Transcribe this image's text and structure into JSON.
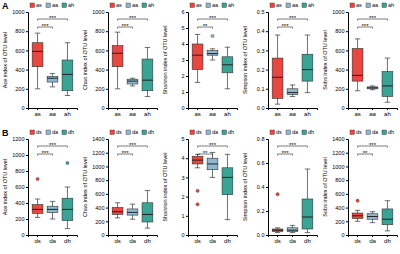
{
  "chart_data": [
    {
      "type": "box",
      "panel": "A",
      "y_label": "Ace index of OTU level",
      "categories": [
        "as",
        "aa",
        "ah"
      ],
      "colors": [
        "#e8473f",
        "#8fb8d0",
        "#3aa394"
      ],
      "legend": "top",
      "ylim": [
        0,
        1000
      ],
      "yticks": [
        0,
        200,
        400,
        600,
        800,
        1000
      ],
      "boxes": [
        {
          "min": 200,
          "q1": 430,
          "median": 590,
          "q3": 680,
          "max": 780,
          "outliers": []
        },
        {
          "min": 220,
          "q1": 270,
          "median": 310,
          "q3": 330,
          "max": 360,
          "outliers": []
        },
        {
          "min": 130,
          "q1": 180,
          "median": 350,
          "q3": 500,
          "max": 680,
          "outliers": []
        }
      ],
      "significance": [
        {
          "pair": [
            "as",
            "aa"
          ],
          "label": "***"
        },
        {
          "pair": [
            "as",
            "ah"
          ],
          "label": "***"
        }
      ]
    },
    {
      "type": "box",
      "y_label": "Chao index of OTU level",
      "categories": [
        "as",
        "aa",
        "ah"
      ],
      "colors": [
        "#e8473f",
        "#8fb8d0",
        "#3aa394"
      ],
      "legend": "top",
      "ylim": [
        0,
        1000
      ],
      "yticks": [
        0,
        200,
        400,
        600,
        800,
        1000
      ],
      "boxes": [
        {
          "min": 200,
          "q1": 430,
          "median": 570,
          "q3": 650,
          "max": 790,
          "outliers": []
        },
        {
          "min": 230,
          "q1": 250,
          "median": 280,
          "q3": 300,
          "max": 310,
          "outliers": []
        },
        {
          "min": 120,
          "q1": 180,
          "median": 290,
          "q3": 510,
          "max": 630,
          "outliers": []
        }
      ],
      "significance": [
        {
          "pair": [
            "as",
            "aa"
          ],
          "label": "***"
        },
        {
          "pair": [
            "as",
            "ah"
          ],
          "label": "***"
        }
      ]
    },
    {
      "type": "box",
      "y_label": "Shannon index of OTU level",
      "categories": [
        "as",
        "aa",
        "ah"
      ],
      "colors": [
        "#e8473f",
        "#8fb8d0",
        "#3aa394"
      ],
      "legend": "top",
      "ylim": [
        0,
        6
      ],
      "yticks": [
        0,
        1,
        2,
        3,
        4,
        5,
        6
      ],
      "boxes": [
        {
          "min": 1.6,
          "q1": 2.4,
          "median": 3.3,
          "q3": 4.0,
          "max": 4.6,
          "outliers": []
        },
        {
          "min": 3.0,
          "q1": 3.3,
          "median": 3.4,
          "q3": 3.6,
          "max": 3.7,
          "outliers": [
            4.5
          ]
        },
        {
          "min": 1.2,
          "q1": 2.2,
          "median": 2.7,
          "q3": 3.2,
          "max": 3.8,
          "outliers": []
        }
      ],
      "significance": [
        {
          "pair": [
            "as",
            "aa"
          ],
          "label": "**"
        },
        {
          "pair": [
            "as",
            "ah"
          ],
          "label": "***"
        }
      ]
    },
    {
      "type": "box",
      "y_label": "Simpson index of OTU level",
      "categories": [
        "as",
        "aa",
        "ah"
      ],
      "colors": [
        "#e8473f",
        "#8fb8d0",
        "#3aa394"
      ],
      "legend": "top",
      "ylim": [
        0,
        0.5
      ],
      "yticks": [
        {
          "value": 0,
          "label": "0.0"
        },
        {
          "value": 0.1,
          "label": "0.1"
        },
        {
          "value": 0.2,
          "label": "0.2"
        },
        {
          "value": 0.3,
          "label": "0.3"
        },
        {
          "value": 0.4,
          "label": "0.4"
        },
        {
          "value": 0.5,
          "label": "0.5"
        }
      ],
      "boxes": [
        {
          "min": 0.02,
          "q1": 0.05,
          "median": 0.16,
          "q3": 0.26,
          "max": 0.38,
          "outliers": []
        },
        {
          "min": 0.06,
          "q1": 0.07,
          "median": 0.08,
          "q3": 0.1,
          "max": 0.12,
          "outliers": []
        },
        {
          "min": 0.08,
          "q1": 0.14,
          "median": 0.2,
          "q3": 0.28,
          "max": 0.38,
          "outliers": []
        }
      ],
      "significance": [
        {
          "pair": [
            "as",
            "aa"
          ],
          "label": "***"
        },
        {
          "pair": [
            "as",
            "ah"
          ],
          "label": "***"
        }
      ]
    },
    {
      "type": "box",
      "y_label": "Sobs index of OTU level",
      "categories": [
        "as",
        "aa",
        "ah"
      ],
      "colors": [
        "#e8473f",
        "#8fb8d0",
        "#3aa394"
      ],
      "legend": "top",
      "ylim": [
        0,
        1000
      ],
      "yticks": [
        0,
        200,
        400,
        600,
        800,
        1000
      ],
      "boxes": [
        {
          "min": 180,
          "q1": 280,
          "median": 340,
          "q3": 620,
          "max": 720,
          "outliers": []
        },
        {
          "min": 190,
          "q1": 200,
          "median": 210,
          "q3": 220,
          "max": 230,
          "outliers": []
        },
        {
          "min": 60,
          "q1": 120,
          "median": 230,
          "q3": 380,
          "max": 520,
          "outliers": []
        }
      ],
      "significance": [
        {
          "pair": [
            "as",
            "aa"
          ],
          "label": "***"
        },
        {
          "pair": [
            "as",
            "ah"
          ],
          "label": "***"
        }
      ]
    },
    {
      "type": "box",
      "panel": "B",
      "y_label": "Ace index of OTU level",
      "categories": [
        "ds",
        "da",
        "dh"
      ],
      "colors": [
        "#e8473f",
        "#8fb8d0",
        "#3aa394"
      ],
      "legend": "top",
      "ylim": [
        0,
        1200
      ],
      "yticks": [
        0,
        200,
        400,
        600,
        800,
        1000,
        1200
      ],
      "boxes": [
        {
          "min": 220,
          "q1": 270,
          "median": 320,
          "q3": 380,
          "max": 450,
          "outliers": [
            700
          ]
        },
        {
          "min": 200,
          "q1": 280,
          "median": 320,
          "q3": 360,
          "max": 420,
          "outliers": []
        },
        {
          "min": 80,
          "q1": 180,
          "median": 320,
          "q3": 460,
          "max": 600,
          "outliers": [
            900
          ]
        }
      ],
      "significance": [
        {
          "pair": [
            "ds",
            "da"
          ],
          "label": "***"
        },
        {
          "pair": [
            "ds",
            "dh"
          ],
          "label": "***"
        }
      ]
    },
    {
      "type": "box",
      "y_label": "Chao index of OTU level",
      "categories": [
        "ds",
        "da",
        "dh"
      ],
      "colors": [
        "#e8473f",
        "#8fb8d0",
        "#3aa394"
      ],
      "legend": "top",
      "ylim": [
        0,
        1400
      ],
      "yticks": [
        0,
        200,
        400,
        600,
        800,
        1000,
        1200,
        1400
      ],
      "boxes": [
        {
          "min": 250,
          "q1": 300,
          "median": 340,
          "q3": 400,
          "max": 470,
          "outliers": []
        },
        {
          "min": 230,
          "q1": 290,
          "median": 330,
          "q3": 380,
          "max": 450,
          "outliers": []
        },
        {
          "min": 100,
          "q1": 190,
          "median": 300,
          "q3": 470,
          "max": 650,
          "outliers": []
        }
      ],
      "significance": [
        {
          "pair": [
            "ds",
            "da"
          ],
          "label": "***"
        },
        {
          "pair": [
            "ds",
            "dh"
          ],
          "label": "***"
        }
      ]
    },
    {
      "type": "box",
      "y_label": "Shannon index of OTU level",
      "categories": [
        "ds",
        "da",
        "dh"
      ],
      "colors": [
        "#e8473f",
        "#8fb8d0",
        "#3aa394"
      ],
      "legend": "top",
      "ylim": [
        0,
        5
      ],
      "yticks": [
        0,
        1,
        2,
        3,
        4,
        5
      ],
      "boxes": [
        {
          "min": 3.5,
          "q1": 3.7,
          "median": 3.9,
          "q3": 4.1,
          "max": 4.2,
          "outliers": [
            1.6,
            2.3
          ]
        },
        {
          "min": 3.0,
          "q1": 3.4,
          "median": 3.7,
          "q3": 4.0,
          "max": 4.3,
          "outliers": []
        },
        {
          "min": 0.8,
          "q1": 2.1,
          "median": 3.0,
          "q3": 3.5,
          "max": 4.2,
          "outliers": []
        }
      ],
      "significance": [
        {
          "pair": [
            "ds",
            "da"
          ],
          "label": "**"
        },
        {
          "pair": [
            "ds",
            "dh"
          ],
          "label": "***"
        }
      ]
    },
    {
      "type": "box",
      "y_label": "Simpson index of OTU level",
      "categories": [
        "ds",
        "da",
        "dh"
      ],
      "colors": [
        "#e8473f",
        "#8fb8d0",
        "#3aa394"
      ],
      "legend": "top",
      "ylim": [
        0,
        0.8
      ],
      "yticks": [
        {
          "value": 0,
          "label": "0.0"
        },
        {
          "value": 0.2,
          "label": "0.2"
        },
        {
          "value": 0.4,
          "label": "0.4"
        },
        {
          "value": 0.6,
          "label": "0.6"
        },
        {
          "value": 0.8,
          "label": "0.8"
        }
      ],
      "boxes": [
        {
          "min": 0.02,
          "q1": 0.03,
          "median": 0.04,
          "q3": 0.05,
          "max": 0.06,
          "outliers": [
            0.34
          ]
        },
        {
          "min": 0.02,
          "q1": 0.03,
          "median": 0.04,
          "q3": 0.06,
          "max": 0.08,
          "outliers": []
        },
        {
          "min": 0.02,
          "q1": 0.05,
          "median": 0.15,
          "q3": 0.3,
          "max": 0.55,
          "outliers": []
        }
      ],
      "significance": [
        {
          "pair": [
            "ds",
            "da"
          ],
          "label": "***"
        },
        {
          "pair": [
            "ds",
            "dh"
          ],
          "label": "***"
        }
      ]
    },
    {
      "type": "box",
      "y_label": "Sobs index of OTU level",
      "categories": [
        "ds",
        "da",
        "dh"
      ],
      "colors": [
        "#e8473f",
        "#8fb8d0",
        "#3aa394"
      ],
      "legend": "top",
      "ylim": [
        0,
        1400
      ],
      "yticks": [
        0,
        200,
        400,
        600,
        800,
        1000,
        1200,
        1400
      ],
      "boxes": [
        {
          "min": 200,
          "q1": 240,
          "median": 280,
          "q3": 320,
          "max": 360,
          "outliers": [
            500
          ]
        },
        {
          "min": 180,
          "q1": 230,
          "median": 270,
          "q3": 310,
          "max": 340,
          "outliers": []
        },
        {
          "min": 60,
          "q1": 150,
          "median": 230,
          "q3": 380,
          "max": 500,
          "outliers": []
        }
      ],
      "significance": [
        {
          "pair": [
            "ds",
            "da"
          ],
          "label": "**"
        },
        {
          "pair": [
            "ds",
            "dh"
          ],
          "label": "***"
        }
      ]
    }
  ]
}
